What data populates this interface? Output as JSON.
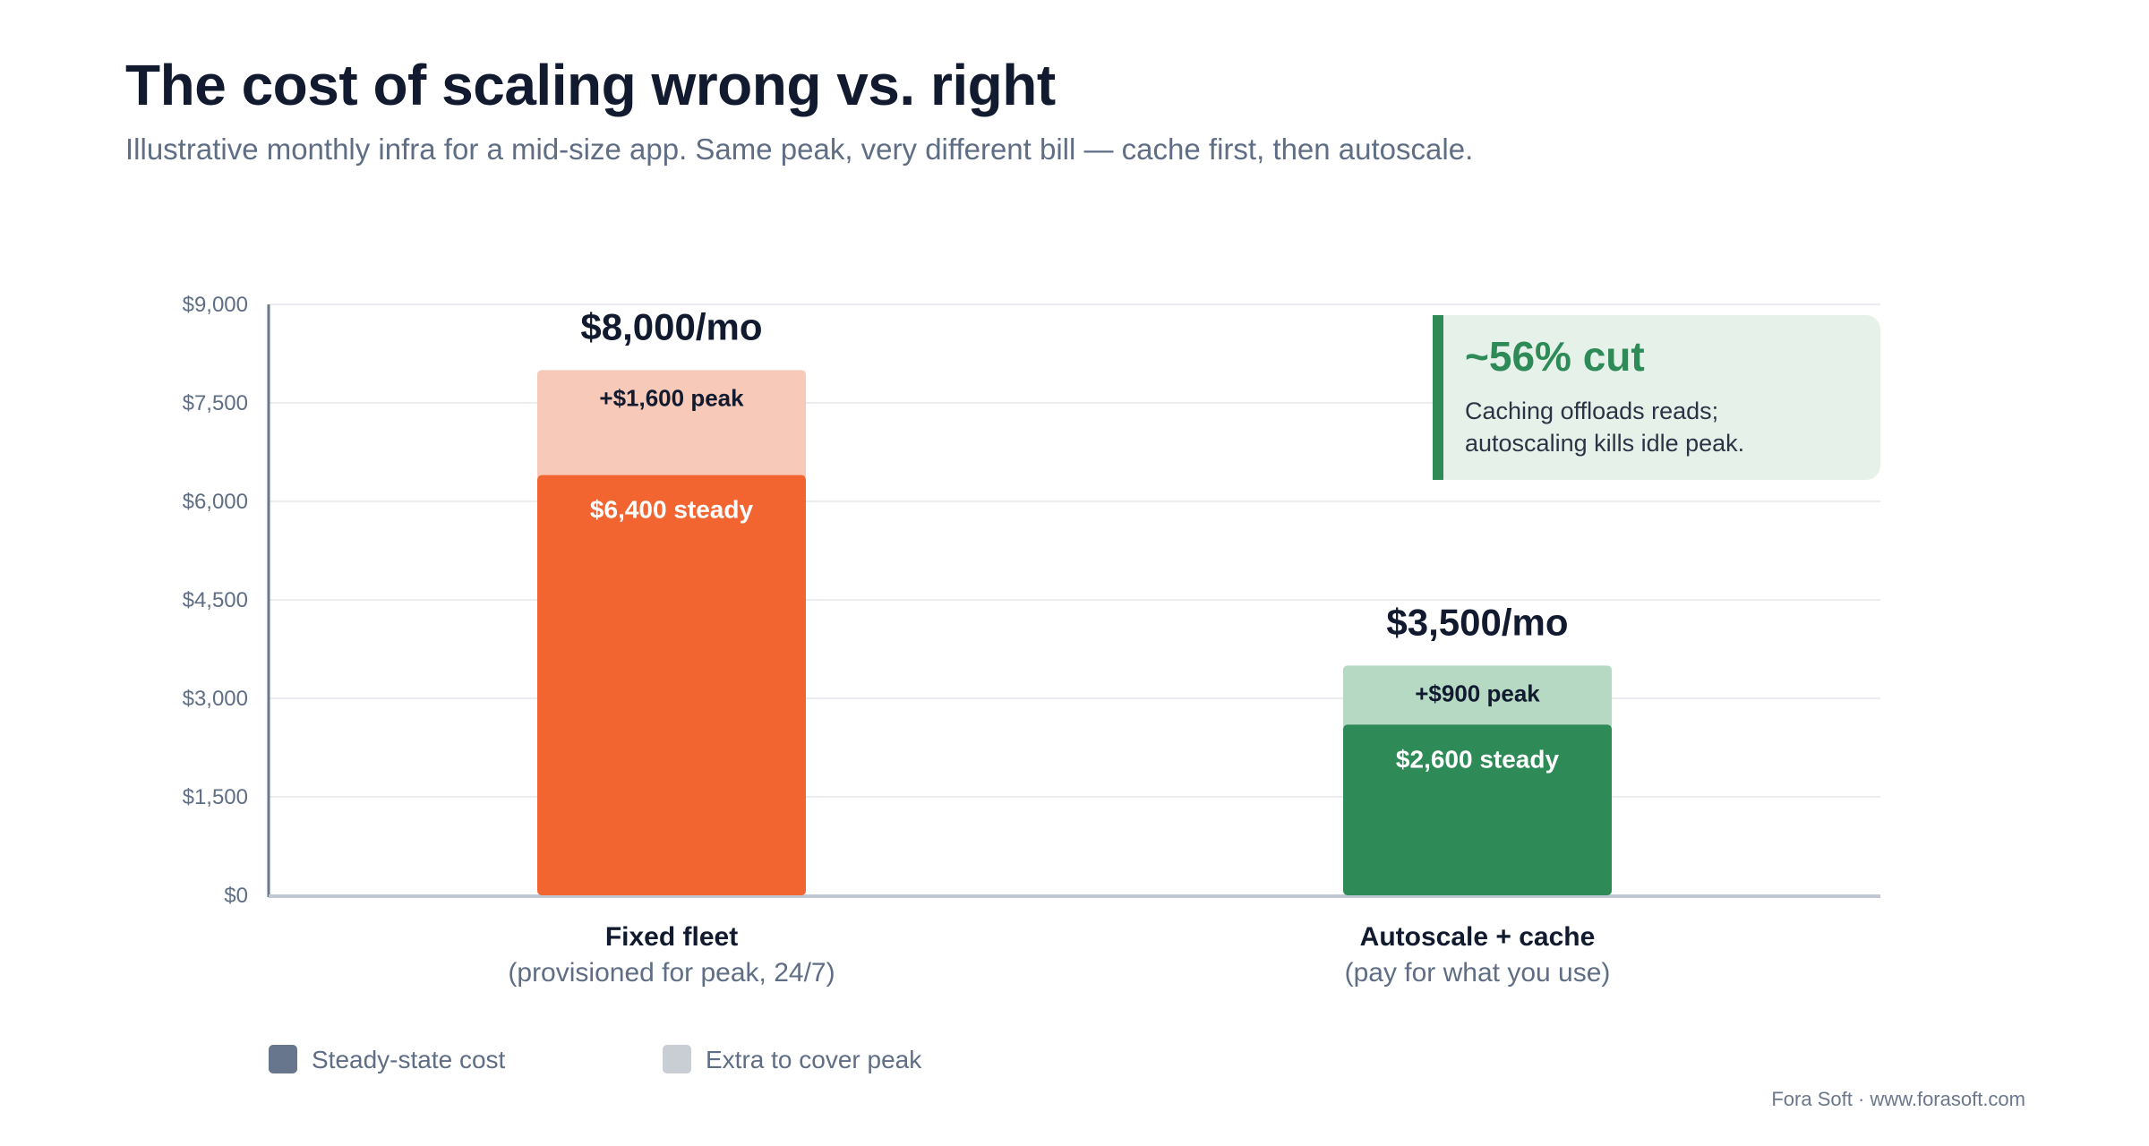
{
  "header": {
    "title": "The cost of scaling wrong vs. right",
    "subtitle": "Illustrative monthly infra for a mid-size app. Same peak, very different bill — cache first, then autoscale."
  },
  "chart_data": {
    "type": "bar",
    "stacked": true,
    "y_ticks": [
      "$0",
      "$1,500",
      "$3,000",
      "$4,500",
      "$6,000",
      "$7,500",
      "$9,000"
    ],
    "y_tick_values": [
      0,
      1500,
      3000,
      4500,
      6000,
      7500,
      9000
    ],
    "ylim": [
      0,
      9000
    ],
    "grid": true,
    "categories": [
      {
        "name": "Fixed fleet",
        "note": "(provisioned for peak, 24/7)",
        "total_label": "$8,000/mo",
        "steady": 6400,
        "peak": 1600,
        "steady_label": "$6,400 steady",
        "peak_label": "+$1,600 peak",
        "steady_color": "#f26531",
        "peak_color": "#f7c9b8"
      },
      {
        "name": "Autoscale + cache",
        "note": "(pay for what you use)",
        "total_label": "$3,500/mo",
        "steady": 2600,
        "peak": 900,
        "steady_label": "$2,600 steady",
        "peak_label": "+$900 peak",
        "steady_color": "#2e8b57",
        "peak_color": "#b6d9c4"
      }
    ],
    "legend": [
      {
        "label": "Steady-state cost",
        "color": "#67758d"
      },
      {
        "label": "Extra to cover peak",
        "color": "#c9cdd4"
      }
    ],
    "legend_placement": "bottom-left",
    "annotation": {
      "headline": "~56% cut",
      "lines": [
        "Caching offloads reads;",
        "autoscaling kills idle peak."
      ],
      "accent": "#2e8b57",
      "background": "#e6f1ea"
    }
  },
  "footer": {
    "credit": "Fora Soft · www.forasoft.com"
  }
}
